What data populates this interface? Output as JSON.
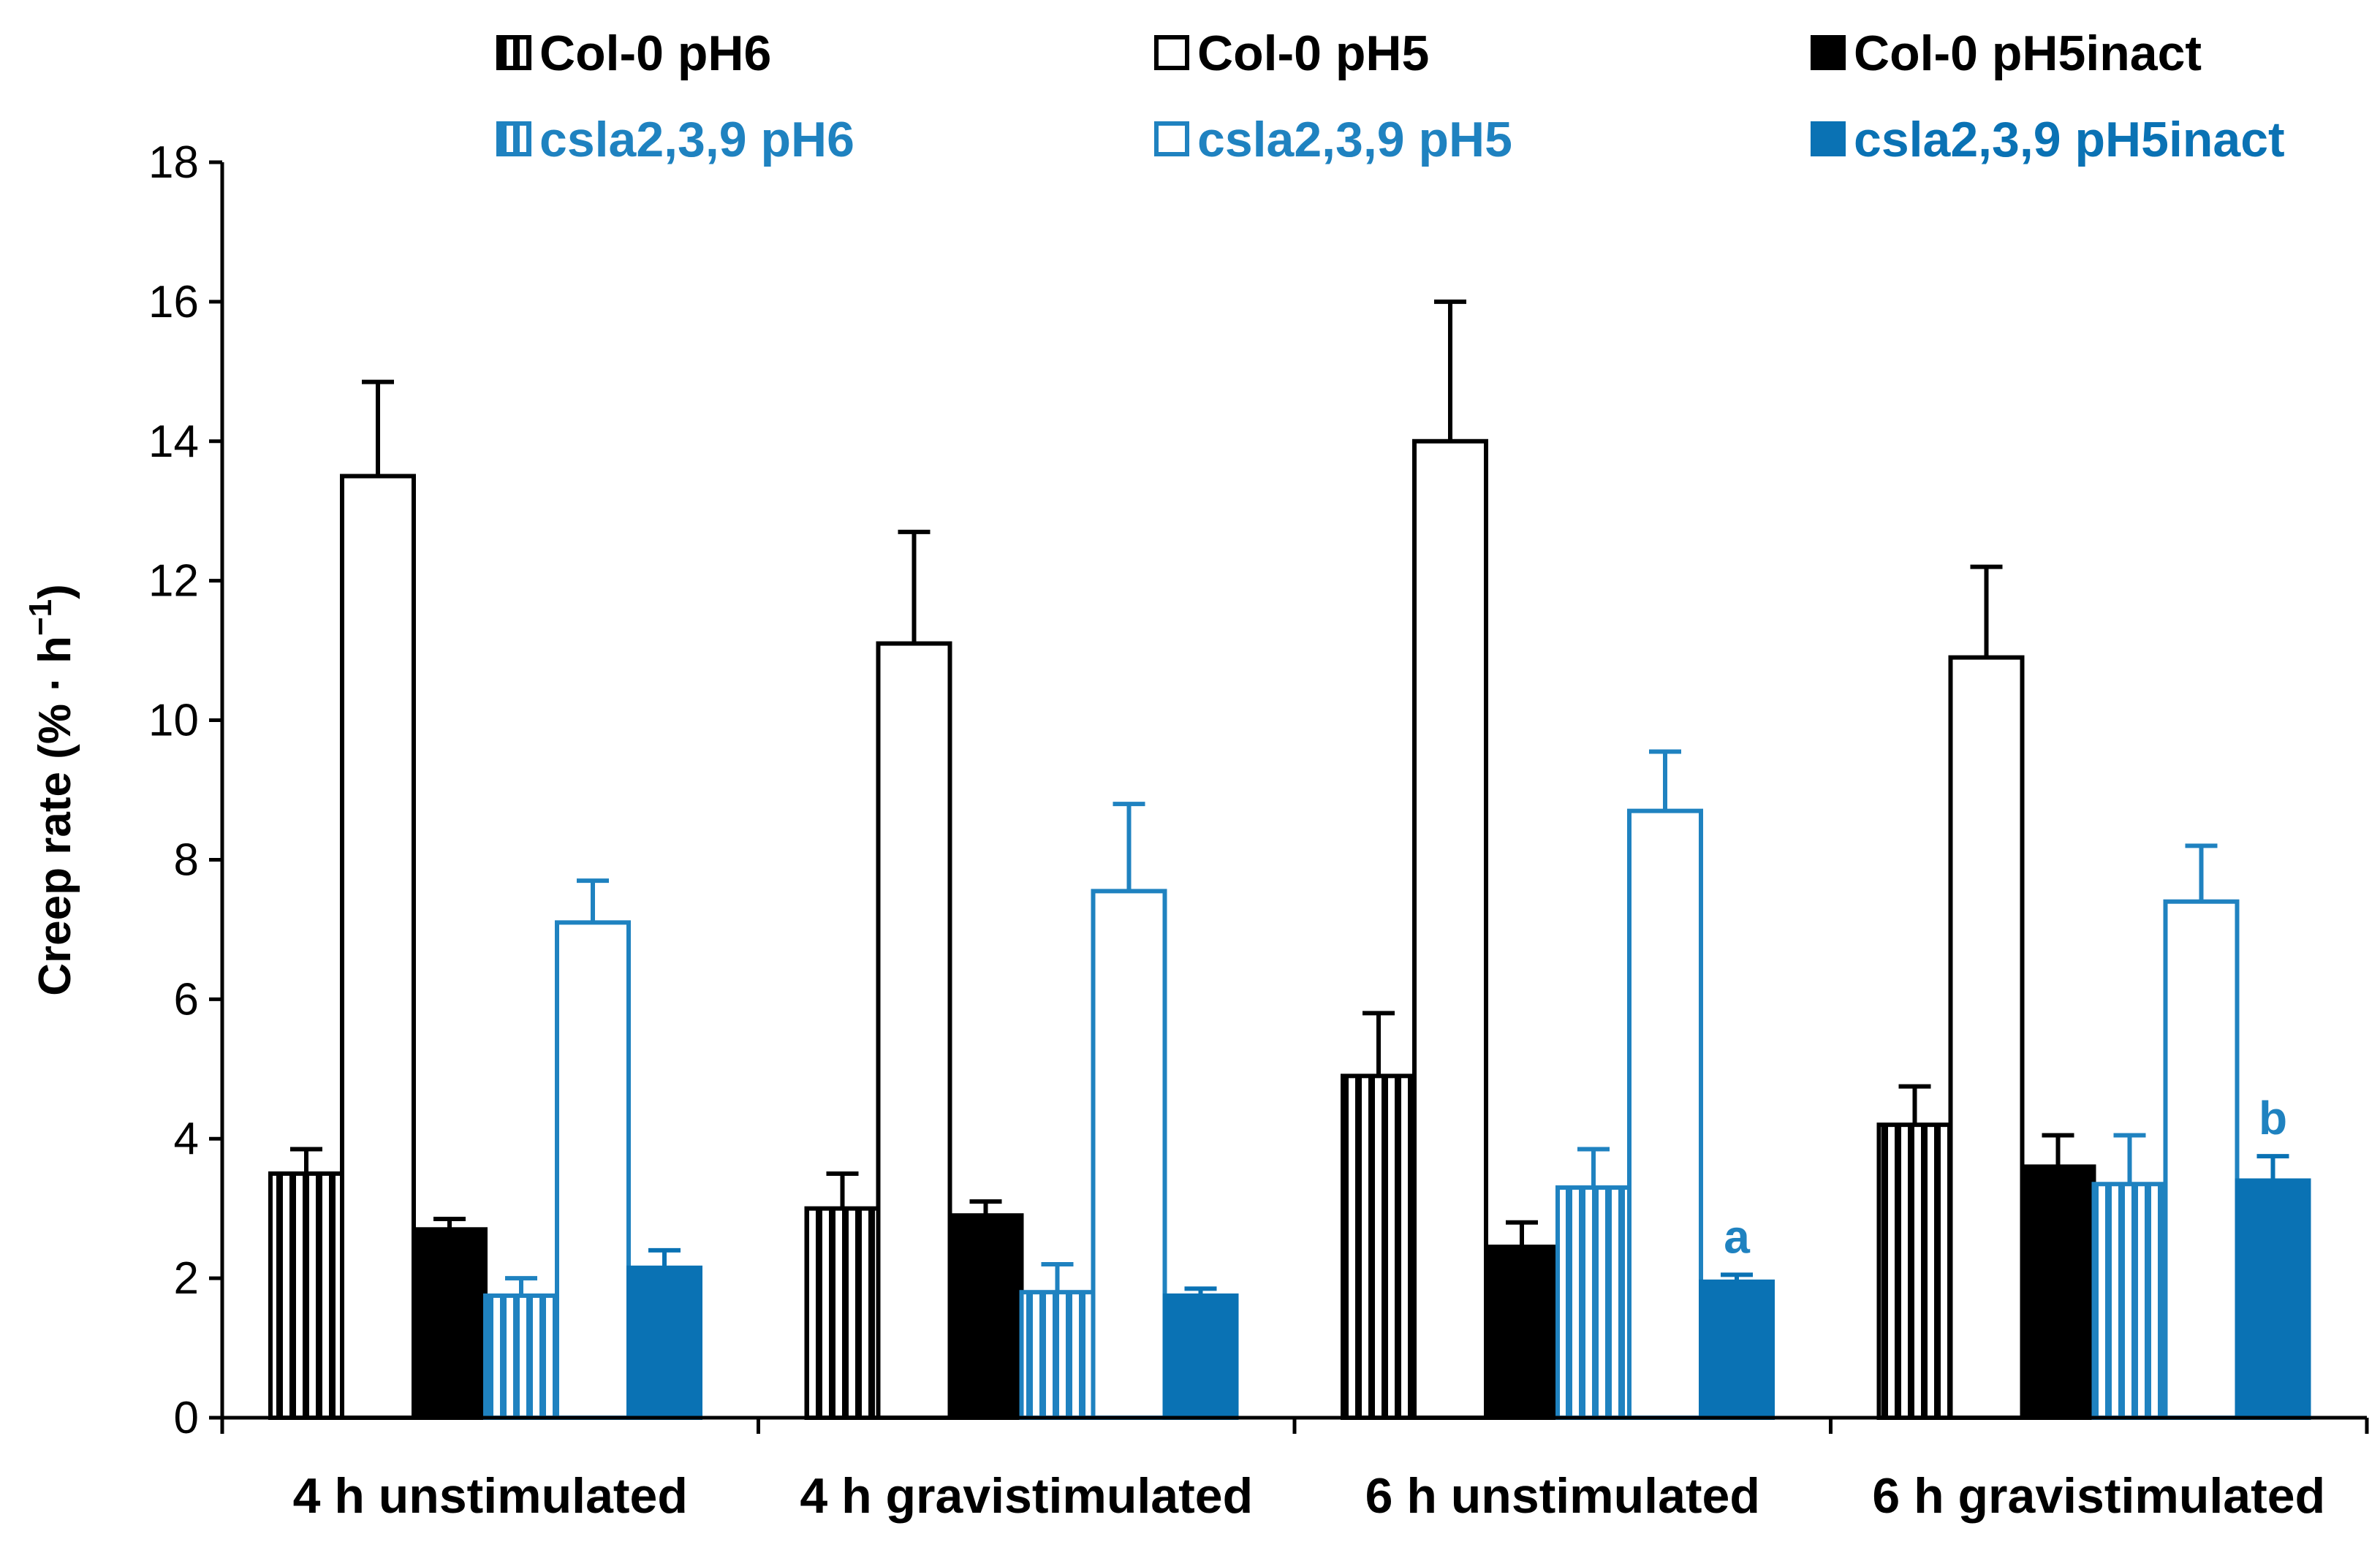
{
  "chart_data": {
    "type": "bar",
    "title": "",
    "xlabel": "",
    "ylabel": "Creep rate (% · h",
    "ylabel_superscript": "−1",
    "ylabel_suffix": ")",
    "ylim": [
      0,
      18
    ],
    "yticks": [
      0,
      2,
      4,
      6,
      8,
      10,
      12,
      14,
      16,
      18
    ],
    "grid": false,
    "legend_position": "top",
    "categories": [
      "4 h unstimulated",
      "4 h gravistimulated",
      "6 h unstimulated",
      "6 h gravistimulated"
    ],
    "series": [
      {
        "name": "Col-0 pH6",
        "color": "#000000",
        "fill": "striped",
        "values": [
          3.5,
          3.0,
          4.9,
          4.2
        ],
        "errors": [
          0.35,
          0.5,
          0.9,
          0.55
        ]
      },
      {
        "name": "Col-0 pH5",
        "color": "#000000",
        "fill": "open",
        "values": [
          13.5,
          11.1,
          14.0,
          10.9
        ],
        "errors": [
          1.35,
          1.6,
          2.0,
          1.3
        ]
      },
      {
        "name": "Col-0 pH5inact",
        "color": "#000000",
        "fill": "solid",
        "values": [
          2.7,
          2.9,
          2.45,
          3.6
        ],
        "errors": [
          0.15,
          0.2,
          0.35,
          0.45
        ]
      },
      {
        "name": "csla2,3,9 pH6",
        "color": "#1f82c0",
        "fill": "striped",
        "values": [
          1.75,
          1.8,
          3.3,
          3.35
        ],
        "errors": [
          0.25,
          0.4,
          0.55,
          0.7
        ]
      },
      {
        "name": "csla2,3,9 pH5",
        "color": "#1f82c0",
        "fill": "open",
        "values": [
          7.1,
          7.55,
          8.7,
          7.4
        ],
        "errors": [
          0.6,
          1.25,
          0.85,
          0.8
        ]
      },
      {
        "name": "csla2,3,9 pH5inact",
        "color": "#0a72b4",
        "fill": "solid",
        "values": [
          2.15,
          1.75,
          1.95,
          3.4
        ],
        "errors": [
          0.25,
          0.1,
          0.1,
          0.35
        ]
      }
    ],
    "annotations": [
      {
        "text": "a",
        "category": "6 h unstimulated",
        "series": "csla2,3,9 pH5inact",
        "color": "#1f82c0"
      },
      {
        "text": "b",
        "category": "6 h gravistimulated",
        "series": "csla2,3,9 pH5inact",
        "color": "#1f82c0"
      }
    ]
  }
}
